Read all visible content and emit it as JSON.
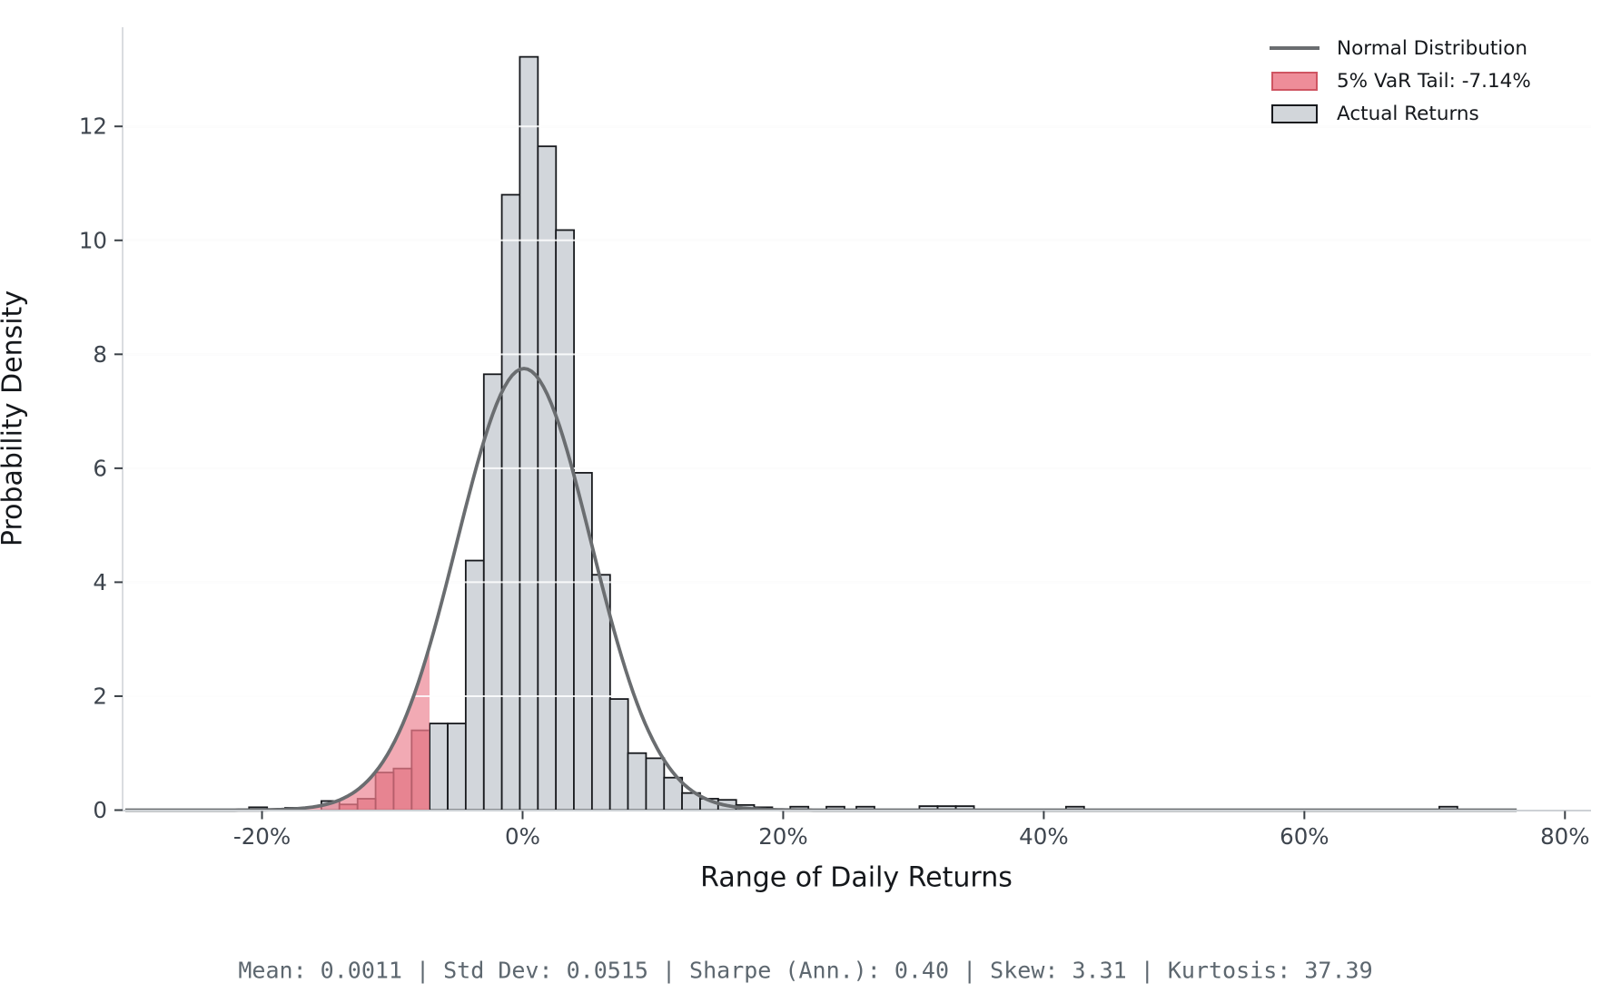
{
  "chart_data": {
    "type": "bar",
    "subtype": "histogram-with-density-overlay",
    "title": "",
    "xlabel": "Range of Daily Returns",
    "ylabel": "Probability Density",
    "xlim_pct": [
      -30.7,
      82.0
    ],
    "ylim": [
      0,
      13.74
    ],
    "x_ticks_pct": [
      -20,
      0,
      20,
      40,
      60,
      80
    ],
    "x_tick_labels": [
      "-20%",
      "0%",
      "20%",
      "40%",
      "60%",
      "80%"
    ],
    "y_ticks": [
      0,
      2,
      4,
      6,
      8,
      10,
      12
    ],
    "grid": "horizontal",
    "legend_position": "upper-right",
    "bin_width_pct": 1.39,
    "bars": [
      {
        "center_pct": -20.3,
        "density": 0.05,
        "tail": false
      },
      {
        "center_pct": -17.53,
        "density": 0.04,
        "tail": false
      },
      {
        "center_pct": -14.75,
        "density": 0.16,
        "tail": false
      },
      {
        "center_pct": -13.37,
        "density": 0.1,
        "tail": true
      },
      {
        "center_pct": -11.97,
        "density": 0.2,
        "tail": true
      },
      {
        "center_pct": -10.59,
        "density": 0.66,
        "tail": true
      },
      {
        "center_pct": -9.21,
        "density": 0.73,
        "tail": true
      },
      {
        "center_pct": -7.82,
        "density": 1.4,
        "tail": true
      },
      {
        "center_pct": -6.44,
        "density": 1.52,
        "tail": false
      },
      {
        "center_pct": -5.05,
        "density": 1.52,
        "tail": false
      },
      {
        "center_pct": -3.67,
        "density": 4.38,
        "tail": false
      },
      {
        "center_pct": -2.28,
        "density": 7.65,
        "tail": false
      },
      {
        "center_pct": -0.9,
        "density": 10.8,
        "tail": false
      },
      {
        "center_pct": 0.48,
        "density": 13.22,
        "tail": false
      },
      {
        "center_pct": 1.87,
        "density": 11.65,
        "tail": false
      },
      {
        "center_pct": 3.25,
        "density": 10.18,
        "tail": false
      },
      {
        "center_pct": 4.63,
        "density": 5.92,
        "tail": false
      },
      {
        "center_pct": 6.02,
        "density": 4.13,
        "tail": false
      },
      {
        "center_pct": 7.4,
        "density": 1.95,
        "tail": false
      },
      {
        "center_pct": 8.78,
        "density": 1.0,
        "tail": false
      },
      {
        "center_pct": 10.17,
        "density": 0.91,
        "tail": false
      },
      {
        "center_pct": 11.55,
        "density": 0.57,
        "tail": false
      },
      {
        "center_pct": 12.93,
        "density": 0.3,
        "tail": false
      },
      {
        "center_pct": 14.32,
        "density": 0.2,
        "tail": false
      },
      {
        "center_pct": 15.7,
        "density": 0.18,
        "tail": false
      },
      {
        "center_pct": 17.08,
        "density": 0.09,
        "tail": false
      },
      {
        "center_pct": 18.47,
        "density": 0.05,
        "tail": false
      },
      {
        "center_pct": 21.24,
        "density": 0.06,
        "tail": false
      },
      {
        "center_pct": 24.01,
        "density": 0.06,
        "tail": false
      },
      {
        "center_pct": 26.31,
        "density": 0.06,
        "tail": false
      },
      {
        "center_pct": 31.15,
        "density": 0.07,
        "tail": false
      },
      {
        "center_pct": 32.55,
        "density": 0.07,
        "tail": false
      },
      {
        "center_pct": 33.95,
        "density": 0.07,
        "tail": false
      },
      {
        "center_pct": 42.4,
        "density": 0.06,
        "tail": false
      },
      {
        "center_pct": 71.05,
        "density": 0.06,
        "tail": false
      }
    ],
    "normal_curve": {
      "mean_pct": 0.11,
      "sigma_pct": 5.15,
      "peak_density": 7.75,
      "range_pct": [
        -30.5,
        76.5
      ]
    },
    "var_tail": {
      "threshold_pct": -7.14,
      "confidence": "5%"
    }
  },
  "legend": {
    "items": [
      {
        "swatch": "line",
        "label": "Normal Distribution"
      },
      {
        "swatch": "patch-red",
        "label": "5% VaR Tail: -7.14%"
      },
      {
        "swatch": "patch-gray",
        "label": "Actual Returns"
      }
    ]
  },
  "axis": {
    "xlabel": "Range of Daily Returns",
    "ylabel": "Probability Density"
  },
  "stats": {
    "mean": "0.0011",
    "std_dev": "0.0515",
    "sharpe_ann": "0.40",
    "skew": "3.31",
    "kurtosis": "37.39",
    "line": "Mean: 0.0011  |  Std Dev: 0.0515  |  Sharpe (Ann.): 0.40  |  Skew: 3.31  |  Kurtosis: 37.39"
  },
  "colors": {
    "bar_fill": "#d2d6db",
    "bar_edge": "#17191d",
    "tail_bar_fill": "#c93f52",
    "tail_bar_edge": "#40151b",
    "tail_area": "#ec8290",
    "curve": "#6a6d70",
    "grid": "#ededf0",
    "grid_over_bars": "rgba(255,255,255,0.85)",
    "spine": "#cdd1d5",
    "tick": "#3a4046",
    "tick_label": "#3e454e"
  }
}
